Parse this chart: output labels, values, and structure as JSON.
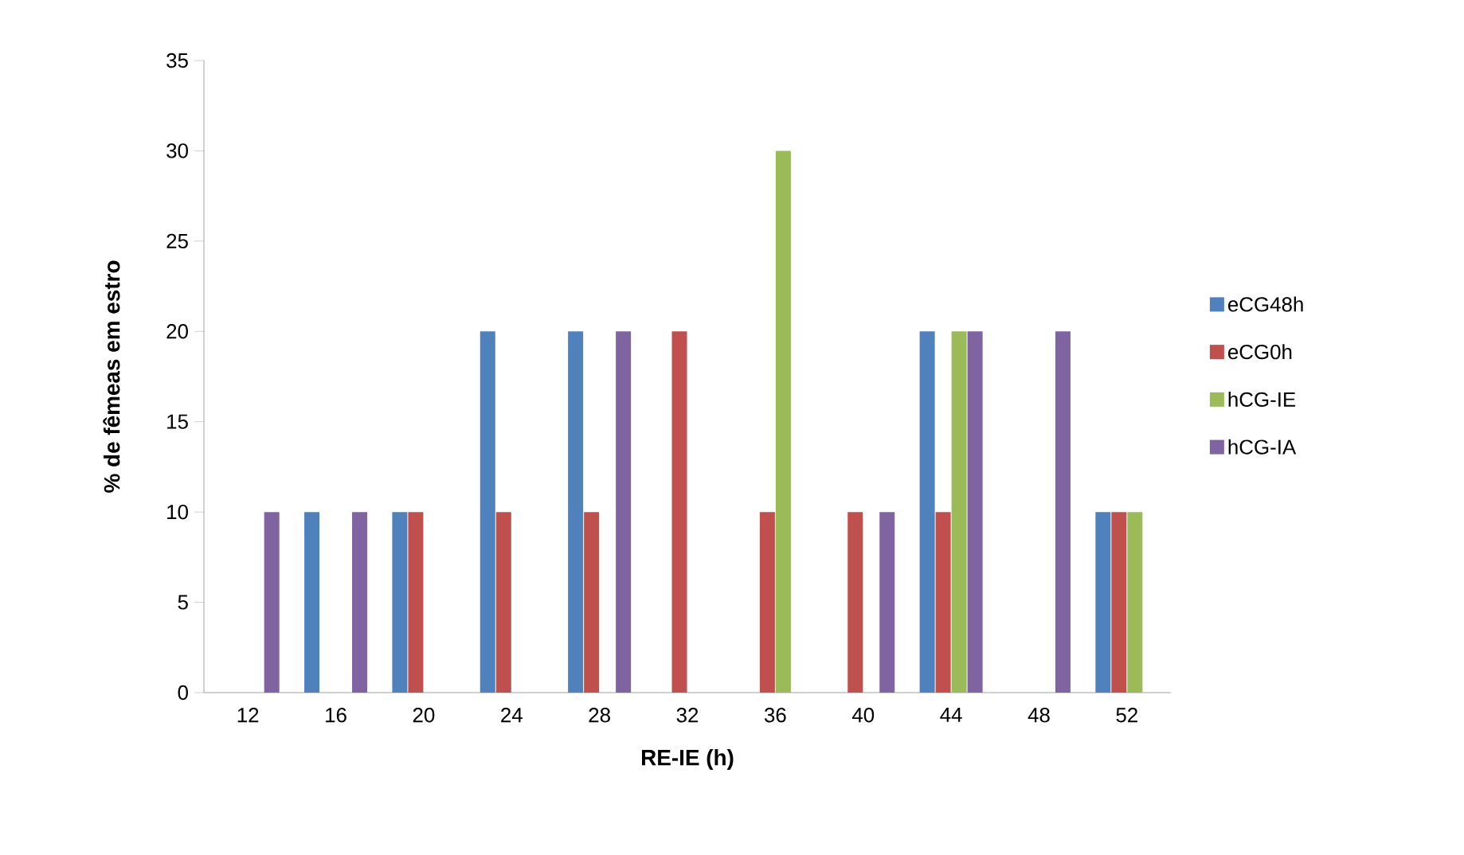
{
  "chart_data": {
    "type": "bar",
    "xlabel": "RE-IE (h)",
    "ylabel": "% de fêmeas em estro",
    "categories": [
      "12",
      "16",
      "20",
      "24",
      "28",
      "32",
      "36",
      "40",
      "44",
      "48",
      "52"
    ],
    "series": [
      {
        "name": "eCG48h",
        "color": "#4f81bd",
        "values": [
          0,
          10,
          10,
          20,
          20,
          0,
          0,
          0,
          20,
          0,
          10
        ]
      },
      {
        "name": "eCG0h",
        "color": "#c0504d",
        "values": [
          0,
          0,
          10,
          10,
          10,
          20,
          10,
          10,
          10,
          0,
          10
        ]
      },
      {
        "name": "hCG-IE",
        "color": "#9bbb59",
        "values": [
          0,
          0,
          0,
          0,
          0,
          0,
          30,
          0,
          20,
          0,
          10
        ]
      },
      {
        "name": "hCG-IA",
        "color": "#8064a2",
        "values": [
          10,
          10,
          0,
          0,
          20,
          0,
          0,
          10,
          20,
          20,
          0
        ]
      }
    ],
    "ylim": [
      0,
      35
    ],
    "yticks": [
      0,
      5,
      10,
      15,
      20,
      25,
      30,
      35
    ],
    "grid": false,
    "legend": "right"
  }
}
